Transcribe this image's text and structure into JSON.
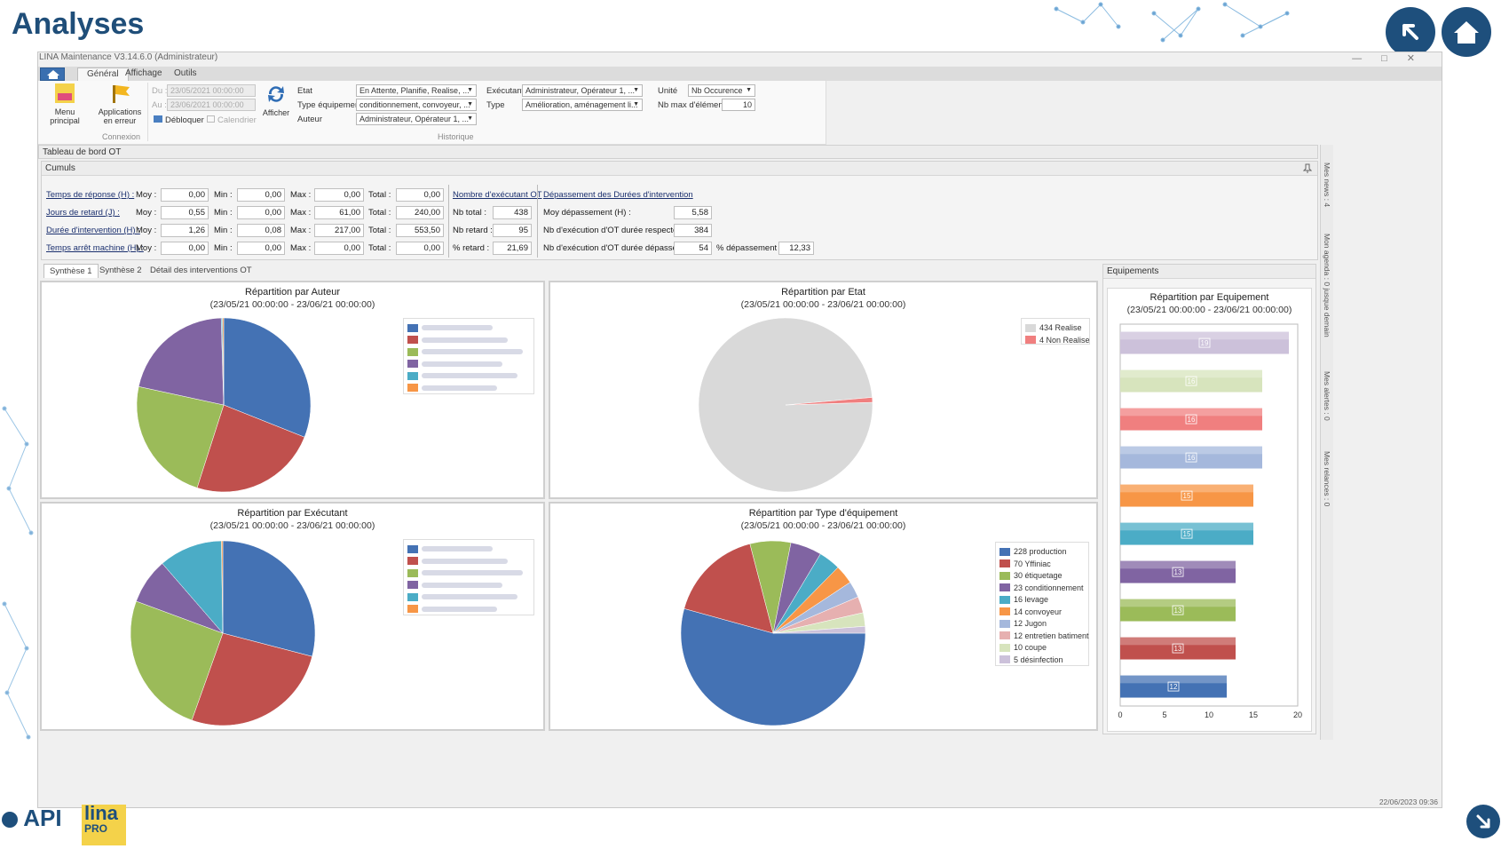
{
  "slide": {
    "title": "Analyses"
  },
  "app": {
    "title": "LINA Maintenance  V3.14.6.0  (Administrateur)",
    "ribbon_tabs": [
      "Général",
      "Affichage",
      "Outils"
    ],
    "menu_principal": "Menu principal",
    "applications_en_erreur": "Applications en erreur",
    "connexion_group": "Connexion",
    "historique_group": "Historique",
    "du_label": "Du :",
    "du_value": "23/05/2021 00:00:00",
    "au_label": "Au :",
    "au_value": "23/06/2021 00:00:00",
    "debloquer": "Débloquer",
    "calendrier": "Calendrier",
    "afficher": "Afficher",
    "etat_label": "Etat",
    "etat_value": "En Attente, Planifie, Realise, ...",
    "type_equipement_label": "Type équipement",
    "type_equipement_value": "conditionnement, convoyeur, ...",
    "auteur_label": "Auteur",
    "auteur_value": "Administrateur, Opérateur 1, ...",
    "executant_label": "Exécutant",
    "executant_value": "Administrateur, Opérateur 1, ...",
    "type_label": "Type",
    "type_value": "Amélioration, aménagement li...",
    "unite_label": "Unité",
    "unite_value": "Nb Occurence",
    "nb_max_label": "Nb max d'éléments",
    "nb_max_value": "10"
  },
  "tableau": {
    "title": "Tableau de bord OT",
    "cumuls_title": "Cumuls"
  },
  "cumuls": {
    "rows": [
      {
        "label": "Temps de réponse (H) :",
        "moy": "0,00",
        "min": "0,00",
        "max": "0,00",
        "total": "0,00"
      },
      {
        "label": "Jours de retard (J) :",
        "moy": "0,55",
        "min": "0,00",
        "max": "61,00",
        "total": "240,00"
      },
      {
        "label": "Durée d'intervention (H) :",
        "moy": "1,26",
        "min": "0,08",
        "max": "217,00",
        "total": "553,50"
      },
      {
        "label": "Temps arrêt machine (H) :",
        "moy": "0,00",
        "min": "0,00",
        "max": "0,00",
        "total": "0,00"
      }
    ],
    "moy_label": "Moy :",
    "min_label": "Min :",
    "max_label": "Max :",
    "total_label": "Total :",
    "nb_exec_title": "Nombre d'exécutant OT",
    "nb_total_label": "Nb total :",
    "nb_total": "438",
    "nb_retard_label": "Nb retard :",
    "nb_retard": "95",
    "pct_retard_label": "% retard :",
    "pct_retard": "21,69",
    "depassement_title": "Dépassement des Durées d'intervention",
    "moy_dep_label": "Moy dépassement (H) :",
    "moy_dep": "5,58",
    "nb_respectee_label": "Nb d'exécution d'OT durée respectée :",
    "nb_respectee": "384",
    "nb_depassee_label": "Nb d'exécution d'OT durée dépassée :",
    "nb_depassee": "54",
    "pct_dep_label": "% dépassement :",
    "pct_dep": "12,33"
  },
  "subtabs": [
    "Synthèse 1",
    "Synthèse 2",
    "Détail des interventions OT"
  ],
  "equipements_title": "Equipements",
  "side_panels": [
    "Mes news : 4",
    "Mon agenda : 0 jusque demain",
    "Mes alertes : 0",
    "Mes relances : 0"
  ],
  "status_date": "22/06/2023 09:36",
  "colors": {
    "blue": "#4472b4",
    "red": "#c0504d",
    "green": "#9bbb59",
    "purple": "#8064a2",
    "teal": "#4bacc6",
    "orange": "#f79646",
    "lightblue": "#a5b8dc",
    "pink": "#e6b0b0",
    "lightgreen": "#d7e4bd",
    "lavender": "#ccc1da",
    "grey": "#d9d9d9",
    "salmon": "#f07f7f"
  },
  "chart_data": [
    {
      "type": "pie",
      "title": "Répartition par Auteur",
      "subtitle": "(23/05/21 00:00:00 - 23/06/21 00:00:00)",
      "legend_blurred": true,
      "series": [
        {
          "values": [
            135,
            104,
            102,
            92,
            1,
            1
          ]
        }
      ]
    },
    {
      "type": "pie",
      "title": "Répartition par Etat",
      "subtitle": "(23/05/21 00:00:00 - 23/06/21 00:00:00)",
      "categories": [
        "434 Realise",
        "4 Non Realise"
      ],
      "series": [
        {
          "values": [
            434,
            4
          ]
        }
      ]
    },
    {
      "type": "pie",
      "title": "Répartition par Exécutant",
      "subtitle": "(23/05/21 00:00:00 - 23/06/21 00:00:00)",
      "legend_blurred": true,
      "series": [
        {
          "values": [
            120,
            109,
            104,
            33,
            46,
            1
          ]
        }
      ]
    },
    {
      "type": "pie",
      "title": "Répartition par Type d'équipement",
      "subtitle": "(23/05/21 00:00:00 - 23/06/21 00:00:00)",
      "categories": [
        "228 production",
        "70 Yffiniac",
        "30 étiquetage",
        "23 conditionnement",
        "16 levage",
        "14 convoyeur",
        "12 Jugon",
        "12 entretien batiment",
        "10 coupe",
        "5 désinfection"
      ],
      "series": [
        {
          "values": [
            228,
            70,
            30,
            23,
            16,
            14,
            12,
            12,
            10,
            5
          ]
        }
      ]
    },
    {
      "type": "bar",
      "orientation": "horizontal",
      "title": "Répartition par Equipement",
      "subtitle": "(23/05/21 00:00:00 - 23/06/21 00:00:00)",
      "values": [
        19,
        16,
        16,
        16,
        15,
        15,
        13,
        13,
        13,
        12
      ],
      "xticks": [
        "0",
        "5",
        "10",
        "15",
        "20"
      ],
      "xlim": [
        0,
        20
      ]
    }
  ]
}
